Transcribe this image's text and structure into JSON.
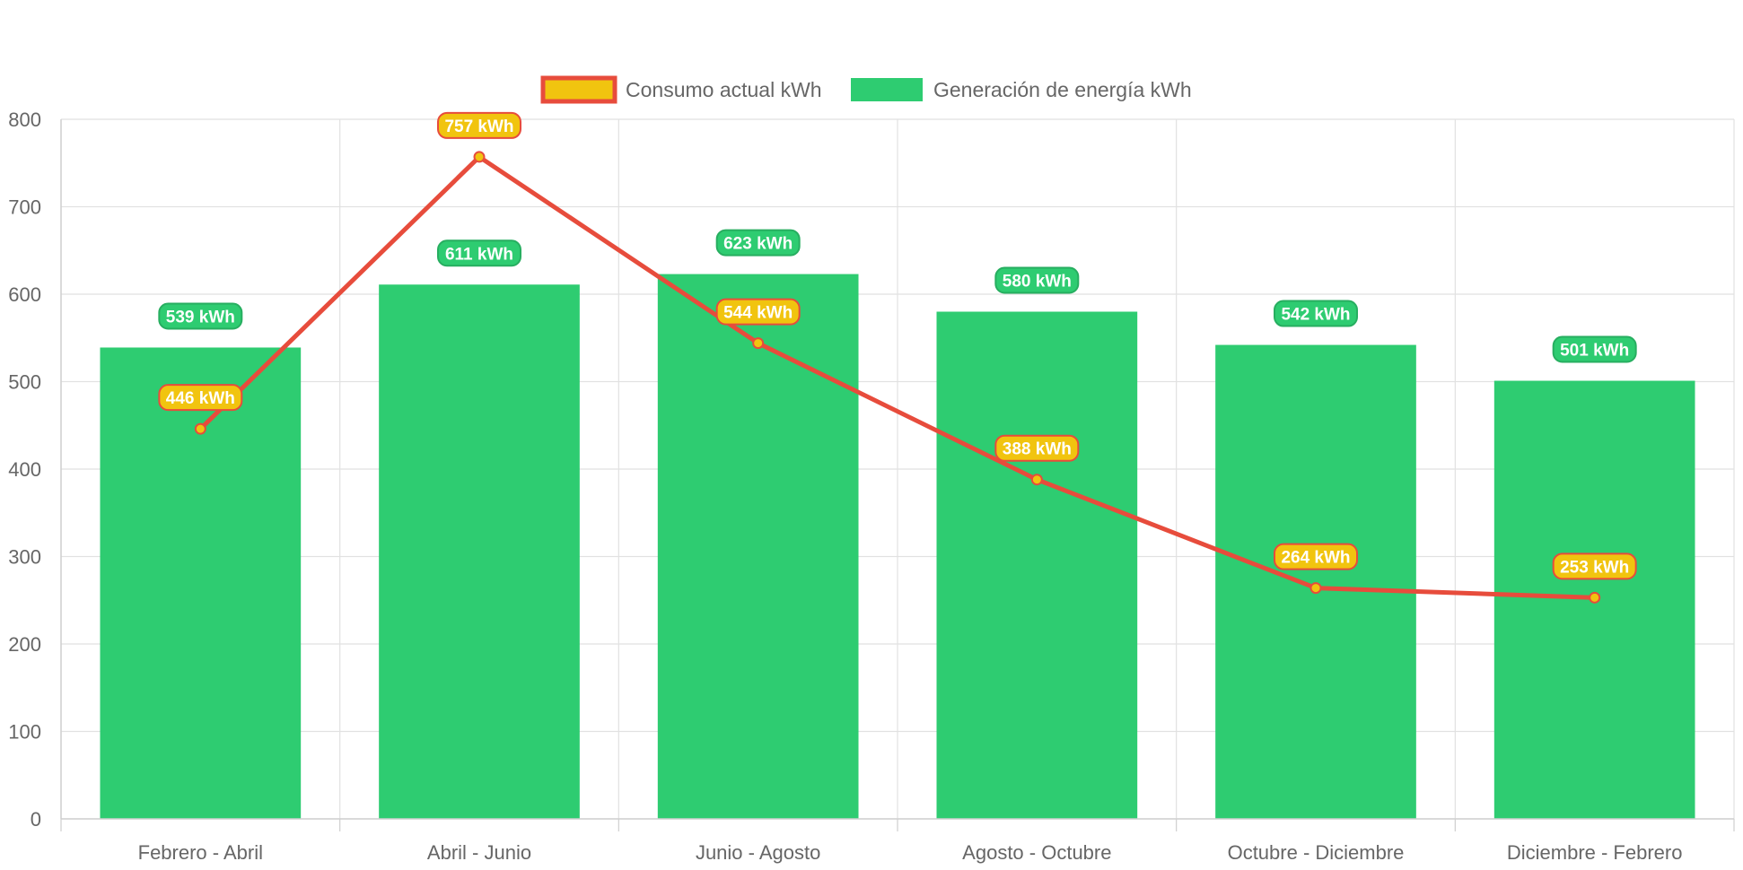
{
  "chart_data": {
    "type": "bar",
    "categories": [
      "Febrero - Abril",
      "Abril - Junio",
      "Junio - Agosto",
      "Agosto - Octubre",
      "Octubre - Diciembre",
      "Diciembre - Febrero"
    ],
    "series": [
      {
        "name": "Consumo actual kWh",
        "type": "line",
        "values": [
          446,
          757,
          544,
          388,
          264,
          253
        ],
        "labels": [
          "446 kWh",
          "757 kWh",
          "544 kWh",
          "388 kWh",
          "264 kWh",
          "253 kWh"
        ],
        "color": "#e74c3c",
        "fill": "#f1c40f"
      },
      {
        "name": "Generación de energía kWh",
        "type": "bar",
        "values": [
          539,
          611,
          623,
          580,
          542,
          501
        ],
        "labels": [
          "539 kWh",
          "611 kWh",
          "623 kWh",
          "580 kWh",
          "542 kWh",
          "501 kWh"
        ],
        "color": "#2ecc71"
      }
    ],
    "ylim": [
      0,
      800
    ],
    "yticks": [
      0,
      100,
      200,
      300,
      400,
      500,
      600,
      700,
      800
    ],
    "ytick_labels": [
      "0",
      "100",
      "200",
      "300",
      "400",
      "500",
      "600",
      "700",
      "800"
    ],
    "grid": true,
    "legend_position": "top-center",
    "title": "",
    "xlabel": "",
    "ylabel": ""
  }
}
